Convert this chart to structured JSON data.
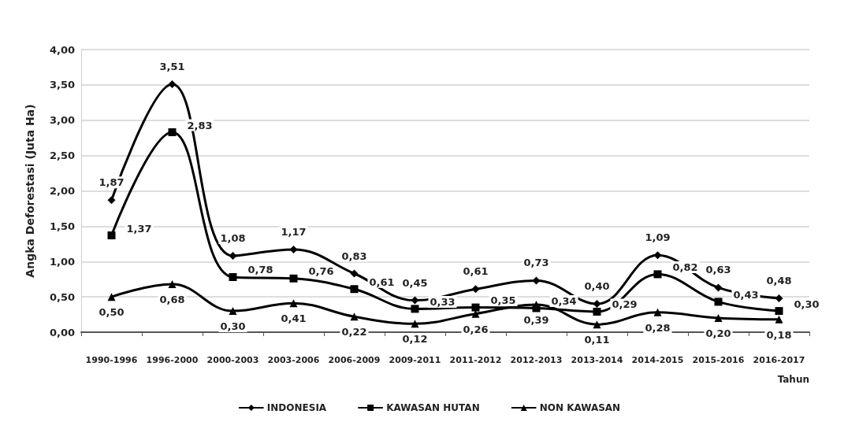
{
  "chart_data": {
    "type": "line",
    "ylabel": "Angka Deforestasi (Juta Ha)",
    "xlabel": "Tahun",
    "categories": [
      "1990-1996",
      "1996-2000",
      "2000-2003",
      "2003-2006",
      "2006-2009",
      "2009-2011",
      "2011-2012",
      "2012-2013",
      "2013-2014",
      "2014-2015",
      "2015-2016",
      "2016-2017"
    ],
    "series": [
      {
        "name": "INDONESIA",
        "color": "#000000",
        "marker": "diamond",
        "values": [
          1.87,
          3.51,
          1.08,
          1.17,
          0.83,
          0.45,
          0.61,
          0.73,
          0.4,
          1.09,
          0.63,
          0.48
        ],
        "value_labels": [
          "1,87",
          "3,51",
          "1,08",
          "1,17",
          "0,83",
          "0,45",
          "0,61",
          "0,73",
          "0,40",
          "1,09",
          "0,63",
          "0,48"
        ]
      },
      {
        "name": "KAWASAN HUTAN",
        "color": "#000000",
        "marker": "square",
        "values": [
          1.37,
          2.83,
          0.78,
          0.76,
          0.61,
          0.33,
          0.35,
          0.34,
          0.29,
          0.82,
          0.43,
          0.3
        ],
        "value_labels": [
          "1,37",
          "2,83",
          "0,78",
          "0,76",
          "0,61",
          "0,33",
          "0,35",
          "0,34",
          "0,29",
          "0,82",
          "0,43",
          "0,30"
        ]
      },
      {
        "name": "NON KAWASAN",
        "color": "#000000",
        "marker": "triangle",
        "values": [
          0.5,
          0.68,
          0.3,
          0.41,
          0.22,
          0.12,
          0.26,
          0.39,
          0.11,
          0.28,
          0.2,
          0.18
        ],
        "value_labels": [
          "0,50",
          "0,68",
          "0,30",
          "0,41",
          "0,22",
          "0,12",
          "0,26",
          "0,39",
          "0,11",
          "0,28",
          "0,20",
          "0,18"
        ]
      }
    ],
    "ylim": [
      0,
      4
    ],
    "yticks": [
      {
        "value": 0,
        "label": "0,00"
      },
      {
        "value": 0.5,
        "label": "0,50"
      },
      {
        "value": 1,
        "label": "1,00"
      },
      {
        "value": 1.5,
        "label": "1,50"
      },
      {
        "value": 2,
        "label": "2,00"
      },
      {
        "value": 2.5,
        "label": "2,50"
      },
      {
        "value": 3,
        "label": "3,00"
      },
      {
        "value": 3.5,
        "label": "3,50"
      },
      {
        "value": 4,
        "label": "4,00"
      }
    ],
    "grid": "y",
    "legend": "bottom",
    "line_style": "solid"
  }
}
